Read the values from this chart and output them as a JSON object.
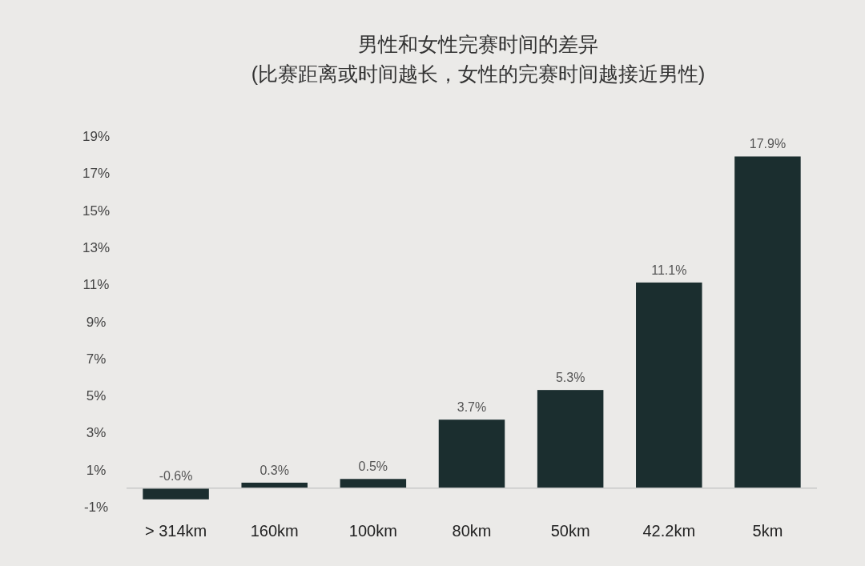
{
  "chart_data": {
    "type": "bar",
    "title": "男性和女性完赛时间的差异",
    "subtitle": "(比赛距离或时间越长，女性的完赛时间越接近男性)",
    "categories": [
      "> 314km",
      "160km",
      "100km",
      "80km",
      "50km",
      "42.2km",
      "5km"
    ],
    "values": [
      -0.6,
      0.3,
      0.5,
      3.7,
      5.3,
      11.1,
      17.9
    ],
    "value_labels": [
      "-0.6%",
      "0.3%",
      "0.5%",
      "3.7%",
      "5.3%",
      "11.1%",
      "17.9%"
    ],
    "color": "#1b2e2f",
    "ylim": [
      -1,
      19
    ],
    "yticks": [
      {
        "value": -1,
        "label": "-1%"
      },
      {
        "value": 1,
        "label": "1%"
      },
      {
        "value": 3,
        "label": "3%"
      },
      {
        "value": 5,
        "label": "5%"
      },
      {
        "value": 7,
        "label": "7%"
      },
      {
        "value": 9,
        "label": "9%"
      },
      {
        "value": 11,
        "label": "11%"
      },
      {
        "value": 13,
        "label": "13%"
      },
      {
        "value": 15,
        "label": "15%"
      },
      {
        "value": 17,
        "label": "17%"
      },
      {
        "value": 19,
        "label": "19%"
      }
    ],
    "grid": false
  }
}
